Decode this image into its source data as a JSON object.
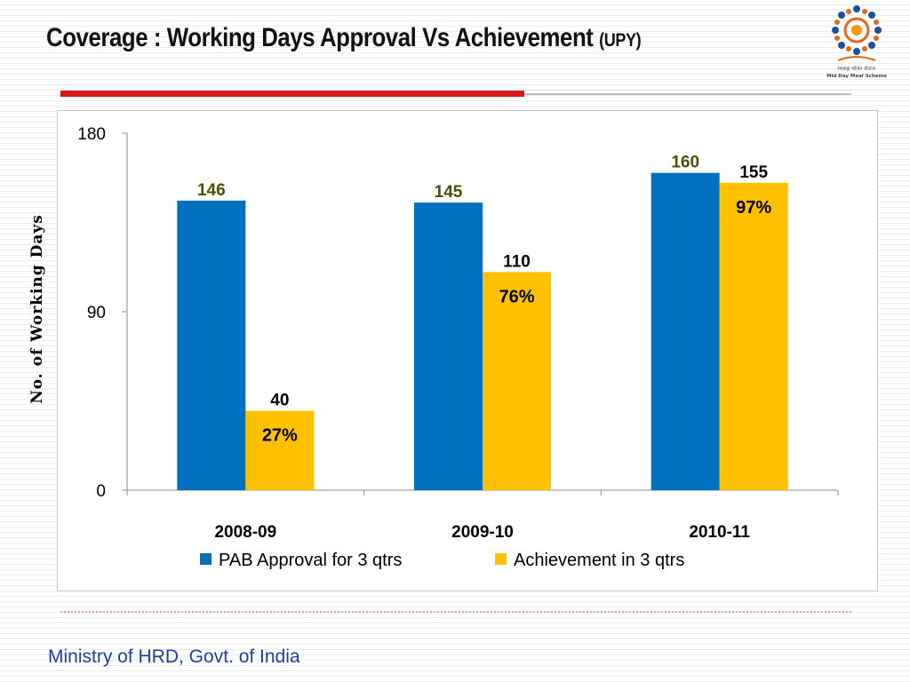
{
  "slide": {
    "title": "Coverage : Working Days Approval Vs Achievement",
    "title_suffix": "(UPY)",
    "footer": "Ministry of HRD, Govt. of India"
  },
  "logo": {
    "text_line1": "मध्याह्न भोजन योजना",
    "text_line2": "Mid Day Meal Scheme"
  },
  "colors": {
    "approval": "#0070c0",
    "achievement": "#ffc000",
    "accent_red": "#d7191c",
    "approval_label": "#4f4f00",
    "achievement_label": "#000000"
  },
  "chart_data": {
    "type": "bar",
    "title": "",
    "xlabel": "",
    "ylabel": "No. of Working Days",
    "categories": [
      "2008-09",
      "2009-10",
      "2010-11"
    ],
    "ylim": [
      0,
      180
    ],
    "yticks": [
      0,
      90,
      180
    ],
    "series": [
      {
        "name": "PAB Approval for 3 qtrs",
        "values": [
          146,
          145,
          160
        ]
      },
      {
        "name": "Achievement in 3 qtrs",
        "values": [
          40,
          110,
          155
        ]
      }
    ],
    "annotations": [
      "27%",
      "76%",
      "97%"
    ],
    "legend": "bottom",
    "grid": false
  }
}
